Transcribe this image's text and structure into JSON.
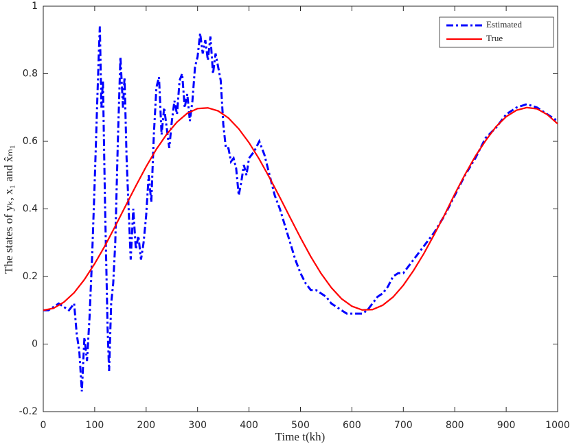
{
  "chart_data": {
    "type": "line",
    "xlabel": "Time t(kh)",
    "ylabel": "The states of yₖ, x₁ and x̂ₘ₁",
    "xlim": [
      0,
      1000
    ],
    "xticks": [
      0,
      100,
      200,
      300,
      400,
      500,
      600,
      700,
      800,
      900,
      1000
    ],
    "ylim": [
      -0.2,
      1
    ],
    "yticks": [
      -0.2,
      0,
      0.2,
      0.4,
      0.6,
      0.8,
      1
    ],
    "legend": "upper right",
    "series": [
      {
        "name": "Estimated",
        "color": "#0000ff",
        "x": [
          0,
          10,
          20,
          30,
          40,
          50,
          60,
          65,
          70,
          75,
          80,
          85,
          90,
          95,
          100,
          105,
          108,
          110,
          113,
          116,
          120,
          125,
          128,
          132,
          136,
          140,
          145,
          150,
          155,
          158,
          162,
          166,
          170,
          175,
          180,
          185,
          190,
          195,
          200,
          205,
          210,
          215,
          220,
          225,
          230,
          235,
          240,
          245,
          250,
          255,
          260,
          265,
          270,
          275,
          280,
          285,
          290,
          295,
          300,
          305,
          310,
          315,
          320,
          325,
          330,
          335,
          340,
          345,
          350,
          355,
          360,
          365,
          370,
          375,
          380,
          385,
          390,
          395,
          400,
          410,
          420,
          430,
          440,
          450,
          460,
          470,
          480,
          490,
          500,
          510,
          520,
          530,
          540,
          550,
          560,
          570,
          580,
          590,
          600,
          610,
          620,
          630,
          640,
          650,
          660,
          670,
          680,
          690,
          700,
          720,
          740,
          760,
          780,
          800,
          820,
          840,
          860,
          880,
          900,
          920,
          940,
          960,
          980,
          1000
        ],
        "values": [
          0.1,
          0.1,
          0.11,
          0.12,
          0.11,
          0.1,
          0.12,
          0.03,
          -0.02,
          -0.14,
          0.02,
          -0.05,
          0.08,
          0.26,
          0.48,
          0.72,
          0.86,
          0.94,
          0.7,
          0.78,
          0.42,
          0.05,
          -0.08,
          0.12,
          0.18,
          0.3,
          0.6,
          0.85,
          0.7,
          0.79,
          0.55,
          0.4,
          0.25,
          0.4,
          0.28,
          0.32,
          0.25,
          0.3,
          0.38,
          0.5,
          0.42,
          0.62,
          0.76,
          0.79,
          0.62,
          0.7,
          0.64,
          0.58,
          0.66,
          0.72,
          0.68,
          0.78,
          0.8,
          0.7,
          0.74,
          0.66,
          0.72,
          0.82,
          0.85,
          0.92,
          0.86,
          0.9,
          0.84,
          0.91,
          0.8,
          0.86,
          0.82,
          0.78,
          0.65,
          0.58,
          0.58,
          0.54,
          0.55,
          0.52,
          0.44,
          0.48,
          0.53,
          0.5,
          0.55,
          0.57,
          0.6,
          0.56,
          0.5,
          0.44,
          0.4,
          0.35,
          0.3,
          0.25,
          0.21,
          0.18,
          0.16,
          0.16,
          0.15,
          0.14,
          0.12,
          0.11,
          0.1,
          0.09,
          0.09,
          0.09,
          0.09,
          0.1,
          0.12,
          0.14,
          0.15,
          0.17,
          0.2,
          0.21,
          0.21,
          0.25,
          0.29,
          0.33,
          0.38,
          0.44,
          0.5,
          0.55,
          0.61,
          0.64,
          0.68,
          0.7,
          0.71,
          0.7,
          0.68,
          0.66
        ]
      },
      {
        "name": "True",
        "color": "#ff0000",
        "x": [
          0,
          20,
          40,
          60,
          80,
          100,
          120,
          140,
          160,
          180,
          200,
          220,
          240,
          260,
          280,
          300,
          320,
          340,
          360,
          380,
          400,
          420,
          440,
          460,
          480,
          500,
          520,
          540,
          560,
          580,
          600,
          620,
          640,
          660,
          680,
          700,
          720,
          740,
          760,
          780,
          800,
          820,
          840,
          860,
          880,
          900,
          920,
          940,
          960,
          980,
          1000
        ],
        "values": [
          0.1,
          0.106,
          0.124,
          0.152,
          0.191,
          0.238,
          0.291,
          0.349,
          0.409,
          0.468,
          0.525,
          0.577,
          0.621,
          0.657,
          0.683,
          0.697,
          0.699,
          0.69,
          0.669,
          0.637,
          0.596,
          0.547,
          0.492,
          0.434,
          0.374,
          0.315,
          0.259,
          0.209,
          0.167,
          0.134,
          0.112,
          0.101,
          0.102,
          0.115,
          0.139,
          0.174,
          0.218,
          0.268,
          0.324,
          0.382,
          0.444,
          0.502,
          0.556,
          0.602,
          0.643,
          0.673,
          0.692,
          0.7,
          0.696,
          0.679,
          0.652
        ]
      }
    ]
  }
}
